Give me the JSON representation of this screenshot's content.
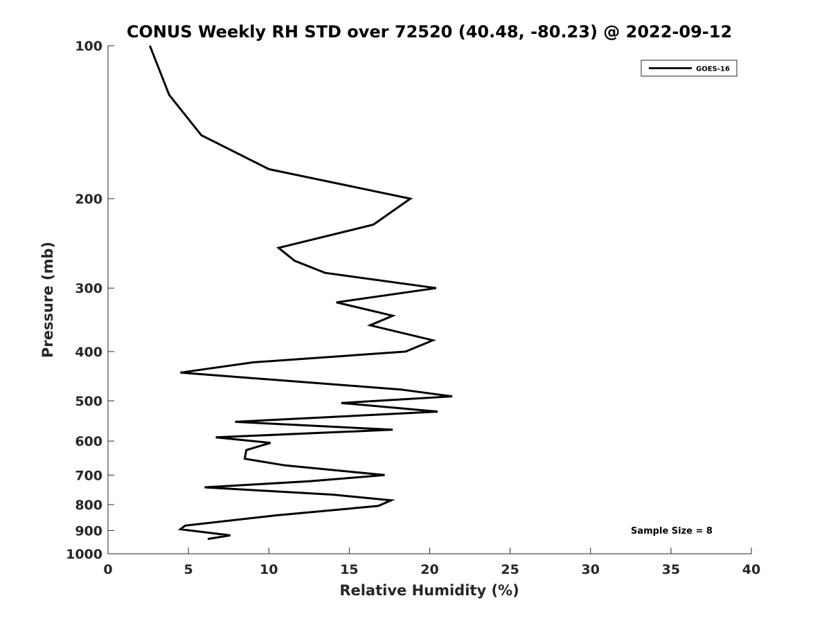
{
  "chart_data": {
    "type": "line",
    "title": "CONUS Weekly RH STD over 72520 (40.48, -80.23) @ 2022-09-12",
    "xlabel": "Relative Humidity (%)",
    "ylabel": "Pressure (mb)",
    "xlim": [
      0,
      40
    ],
    "ylim": [
      100,
      1000
    ],
    "y_scale": "log",
    "y_reversed": true,
    "grid": false,
    "legend_position": "top-right",
    "x_ticks": [
      "0",
      "5",
      "10",
      "15",
      "20",
      "25",
      "30",
      "35",
      "40"
    ],
    "y_ticks": [
      "100",
      "200",
      "300",
      "400",
      "500",
      "600",
      "700",
      "800",
      "900",
      "1000"
    ],
    "annotation": "Sample Size = 8",
    "series": [
      {
        "name": "GOES-16",
        "color": "#000000",
        "points": [
          [
            2.6,
            100
          ],
          [
            3.8,
            125
          ],
          [
            5.8,
            150
          ],
          [
            10.0,
            175
          ],
          [
            18.8,
            200
          ],
          [
            16.5,
            225
          ],
          [
            10.6,
            250
          ],
          [
            11.6,
            265
          ],
          [
            13.5,
            280
          ],
          [
            20.4,
            300
          ],
          [
            14.2,
            320
          ],
          [
            17.7,
            340
          ],
          [
            16.3,
            355
          ],
          [
            20.2,
            380
          ],
          [
            18.5,
            400
          ],
          [
            9.0,
            420
          ],
          [
            4.5,
            440
          ],
          [
            18.2,
            475
          ],
          [
            21.4,
            490
          ],
          [
            14.5,
            505
          ],
          [
            20.5,
            525
          ],
          [
            7.9,
            550
          ],
          [
            17.7,
            570
          ],
          [
            6.7,
            590
          ],
          [
            10.1,
            605
          ],
          [
            8.6,
            625
          ],
          [
            8.5,
            650
          ],
          [
            11.0,
            670
          ],
          [
            17.2,
            700
          ],
          [
            12.5,
            720
          ],
          [
            6.0,
            740
          ],
          [
            14.0,
            765
          ],
          [
            17.6,
            785
          ],
          [
            16.8,
            805
          ],
          [
            10.5,
            840
          ],
          [
            6.2,
            870
          ],
          [
            4.8,
            880
          ],
          [
            4.5,
            895
          ],
          [
            7.6,
            920
          ],
          [
            6.2,
            935
          ]
        ]
      }
    ]
  }
}
